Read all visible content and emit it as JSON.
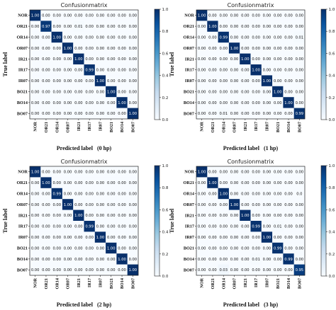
{
  "chart_data": [
    {
      "type": "heatmap",
      "title": "Confusionmatrix",
      "xlabel": "Predicted label",
      "xlabel_suffix": "(0 hp)",
      "ylabel": "True label",
      "categories": [
        "NOR",
        "OR21",
        "OR14",
        "OR07",
        "IR21",
        "IR17",
        "IR07",
        "BO21",
        "BO14",
        "BO07"
      ],
      "colorbar": {
        "min": 0.0,
        "max": 1.0,
        "ticks": [
          "0.0",
          "0.2",
          "0.4",
          "0.6",
          "0.8",
          "1.0"
        ]
      },
      "matrix": [
        [
          "1.00",
          "0.00",
          "0.00",
          "0.00",
          "0.00",
          "0.00",
          "0.00",
          "0.00",
          "0.00",
          "0.00"
        ],
        [
          "0.00",
          "0.97",
          "0.00",
          "0.00",
          "0.01",
          "0.00",
          "0.00",
          "0.00",
          "0.00",
          "0.00"
        ],
        [
          "0.00",
          "0.00",
          "1.00",
          "0.00",
          "0.00",
          "0.00",
          "0.00",
          "0.00",
          "0.00",
          "0.00"
        ],
        [
          "0.00",
          "0.00",
          "0.00",
          "1.00",
          "0.00",
          "0.00",
          "0.00",
          "0.00",
          "0.00",
          "0.00"
        ],
        [
          "0.00",
          "0.00",
          "0.00",
          "0.00",
          "1.00",
          "0.00",
          "0.00",
          "0.00",
          "0.00",
          "0.00"
        ],
        [
          "0.00",
          "0.00",
          "0.00",
          "0.00",
          "0.00",
          "0.99",
          "0.00",
          "0.00",
          "0.00",
          "0.00"
        ],
        [
          "0.00",
          "0.00",
          "0.00",
          "0.00",
          "0.00",
          "0.00",
          "1.00",
          "0.00",
          "0.00",
          "0.00"
        ],
        [
          "0.00",
          "0.00",
          "0.00",
          "0.00",
          "0.00",
          "0.00",
          "0.00",
          "1.00",
          "0.00",
          "0.00"
        ],
        [
          "0.00",
          "0.00",
          "0.00",
          "0.00",
          "0.00",
          "0.00",
          "0.00",
          "0.00",
          "1.00",
          "0.00"
        ],
        [
          "0.00",
          "0.00",
          "0.00",
          "0.00",
          "0.00",
          "0.00",
          "0.00",
          "0.00",
          "0.00",
          "1.00"
        ]
      ]
    },
    {
      "type": "heatmap",
      "title": "Confusionmatrix",
      "xlabel": "Predicted label",
      "xlabel_suffix": "(1 hp)",
      "ylabel": "True label",
      "categories": [
        "NOR",
        "OR21",
        "OR14",
        "OR07",
        "IR21",
        "IR17",
        "IR07",
        "BO21",
        "BO14",
        "BO07"
      ],
      "colorbar": {
        "min": 0.0,
        "max": 1.0,
        "ticks": [
          "0.0",
          "0.2",
          "0.4",
          "0.6",
          "0.8",
          "1.0"
        ]
      },
      "matrix": [
        [
          "1.00",
          "0.00",
          "0.00",
          "0.00",
          "0.00",
          "0.00",
          "0.00",
          "0.00",
          "0.00",
          "0.00"
        ],
        [
          "0.00",
          "1.00",
          "0.00",
          "0.00",
          "0.00",
          "0.00",
          "0.00",
          "0.00",
          "0.00",
          "0.00"
        ],
        [
          "0.00",
          "0.00",
          "0.99",
          "0.00",
          "0.00",
          "0.00",
          "0.00",
          "0.00",
          "0.00",
          "0.01"
        ],
        [
          "0.00",
          "0.00",
          "0.00",
          "1.00",
          "0.00",
          "0.00",
          "0.00",
          "0.00",
          "0.00",
          "0.00"
        ],
        [
          "0.00",
          "0.00",
          "0.00",
          "0.00",
          "1.00",
          "0.00",
          "0.00",
          "0.00",
          "0.00",
          "0.00"
        ],
        [
          "0.00",
          "0.00",
          "0.00",
          "0.00",
          "0.00",
          "1.00",
          "0.00",
          "0.00",
          "0.00",
          "0.00"
        ],
        [
          "0.00",
          "0.00",
          "0.00",
          "0.00",
          "0.00",
          "0.00",
          "1.00",
          "0.00",
          "0.00",
          "0.00"
        ],
        [
          "0.00",
          "0.00",
          "0.00",
          "0.00",
          "0.00",
          "0.00",
          "0.00",
          "1.00",
          "0.00",
          "0.00"
        ],
        [
          "0.00",
          "0.00",
          "0.00",
          "0.00",
          "0.00",
          "0.00",
          "0.00",
          "0.00",
          "1.00",
          "0.00"
        ],
        [
          "0.00",
          "0.00",
          "0.01",
          "0.00",
          "0.00",
          "0.00",
          "0.00",
          "0.00",
          "0.00",
          "0.99"
        ]
      ]
    },
    {
      "type": "heatmap",
      "title": "Confusionmatrix",
      "xlabel": "Predicted label",
      "xlabel_suffix": "(2 hp)",
      "ylabel": "True label",
      "categories": [
        "NOR",
        "OR21",
        "OR14",
        "OR07",
        "IR21",
        "IR17",
        "IR07",
        "BO21",
        "BO14",
        "BO07"
      ],
      "colorbar": {
        "min": 0.0,
        "max": 1.0,
        "ticks": [
          "0.0",
          "0.2",
          "0.4",
          "0.6",
          "0.8",
          "1.0"
        ]
      },
      "matrix": [
        [
          "1.00",
          "0.00",
          "0.00",
          "0.00",
          "0.00",
          "0.00",
          "0.00",
          "0.00",
          "0.00",
          "0.00"
        ],
        [
          "0.00",
          "1.00",
          "0.00",
          "0.00",
          "0.00",
          "0.00",
          "0.00",
          "0.00",
          "0.00",
          "0.00"
        ],
        [
          "0.00",
          "0.00",
          "0.99",
          "0.00",
          "0.00",
          "0.00",
          "0.00",
          "0.00",
          "0.00",
          "0.00"
        ],
        [
          "0.00",
          "0.00",
          "0.00",
          "1.00",
          "0.00",
          "0.00",
          "0.00",
          "0.00",
          "0.00",
          "0.00"
        ],
        [
          "0.00",
          "0.00",
          "0.00",
          "0.00",
          "1.00",
          "0.00",
          "0.00",
          "0.00",
          "0.00",
          "0.00"
        ],
        [
          "0.00",
          "0.00",
          "0.00",
          "0.00",
          "0.00",
          "0.99",
          "0.00",
          "0.00",
          "0.00",
          "0.00"
        ],
        [
          "0.00",
          "0.00",
          "0.00",
          "0.00",
          "0.00",
          "0.00",
          "1.00",
          "0.00",
          "0.00",
          "0.00"
        ],
        [
          "0.00",
          "0.00",
          "0.00",
          "0.00",
          "0.00",
          "0.00",
          "0.00",
          "1.00",
          "0.00",
          "0.00"
        ],
        [
          "0.00",
          "0.00",
          "0.00",
          "0.00",
          "0.00",
          "0.00",
          "0.00",
          "0.00",
          "1.00",
          "0.00"
        ],
        [
          "0.00",
          "0.00",
          "0.00",
          "0.00",
          "0.00",
          "0.00",
          "0.00",
          "0.00",
          "0.00",
          "1.00"
        ]
      ]
    },
    {
      "type": "heatmap",
      "title": "Confusionmatrix",
      "xlabel": "Predicted label",
      "xlabel_suffix": "(3 hp)",
      "ylabel": "True label",
      "categories": [
        "NOR",
        "OR21",
        "OR14",
        "OR07",
        "IR21",
        "IR17",
        "IR07",
        "BO21",
        "BO14",
        "BO07"
      ],
      "colorbar": {
        "min": 0.0,
        "max": 1.0,
        "ticks": [
          "0.0",
          "0.2",
          "0.4",
          "0.6",
          "0.8",
          "1.0"
        ]
      },
      "matrix": [
        [
          "1.00",
          "0.00",
          "0.00",
          "0.00",
          "0.00",
          "0.00",
          "0.00",
          "0.00",
          "0.00",
          "0.00"
        ],
        [
          "0.00",
          "1.00",
          "0.00",
          "0.00",
          "0.00",
          "0.00",
          "0.00",
          "0.00",
          "0.00",
          "0.00"
        ],
        [
          "0.00",
          "0.00",
          "1.00",
          "0.00",
          "0.00",
          "0.00",
          "0.00",
          "0.00",
          "0.00",
          "0.0"
        ],
        [
          "0.00",
          "0.00",
          "0.00",
          "1.00",
          "0.00",
          "0.00",
          "0.00",
          "0.00",
          "0.00",
          "0.00"
        ],
        [
          "0.00",
          "0.00",
          "0.00",
          "0.00",
          "1.00",
          "0.00",
          "0.00",
          "0.00",
          "0.00",
          "0.00"
        ],
        [
          "0.00",
          "0.00",
          "0.00",
          "0.00",
          "0.00",
          "0.99",
          "0.00",
          "0.01",
          "0.00",
          "0.00"
        ],
        [
          "0.00",
          "0.00",
          "0.00",
          "0.00",
          "0.00",
          "0.00",
          "1.00",
          "0.00",
          "0.00",
          "0.00"
        ],
        [
          "0.00",
          "0.00",
          "0.00",
          "0.00",
          "0.00",
          "0.00",
          "0.00",
          "0.99",
          "0.00",
          "0.00"
        ],
        [
          "0.00",
          "0.00",
          "0.00",
          "0.00",
          "0.00",
          "0.01",
          "0.00",
          "0.00",
          "0.99",
          "0.00"
        ],
        [
          "0.00",
          "0.00",
          "0.03",
          "0.00",
          "0.00",
          "0.00",
          "0.00",
          "0.00",
          "0.00",
          "0.95"
        ]
      ]
    }
  ],
  "colors": {
    "low": "#f7fbff",
    "high": "#08306b",
    "light_text": "#ffffff",
    "dark_text": "#111111"
  }
}
